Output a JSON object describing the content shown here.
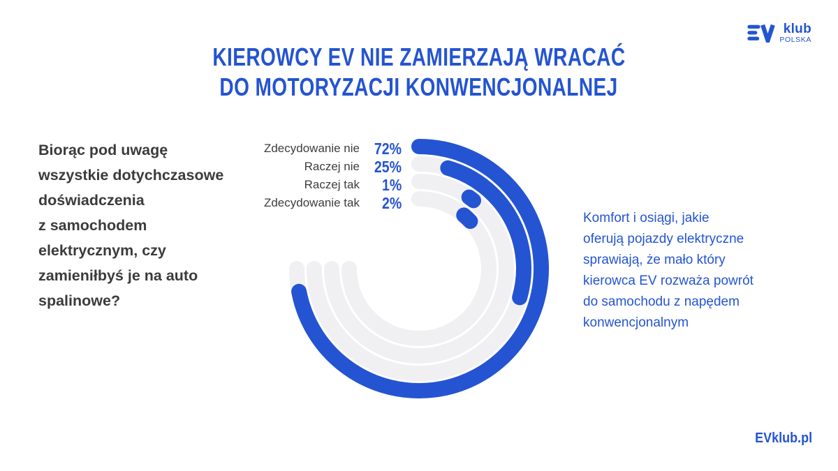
{
  "accent": "#2454d2",
  "header": {
    "title_line1": "KIEROWCY EV NIE ZAMIERZAJĄ WRACAĆ",
    "title_line2": "DO MOTORYZACJI KONWENCJONALNEJ"
  },
  "logo": {
    "klub": "klub",
    "polska": "POLSKA"
  },
  "question": {
    "text": "Biorąc pod uwagę\nwszystkie dotychczasowe\ndoświadczenia\nz samochodem\nelektrycznym, czy\nzamieniłbyś je na auto\nspalinowe?"
  },
  "legend": {
    "rows": [
      {
        "label": "Zdecydowanie nie",
        "pct": "72%"
      },
      {
        "label": "Raczej nie",
        "pct": "25%"
      },
      {
        "label": "Raczej tak",
        "pct": "1%"
      },
      {
        "label": "Zdecydowanie tak",
        "pct": "2%"
      }
    ]
  },
  "commentary": {
    "text": "Komfort i osiągi, jakie\noferują pojazdy elektryczne\nsprawiają, że mało który\nkierowca EV rozważa powrót\ndo samochodu z napędem\nkonwencjonalnym"
  },
  "footer": {
    "url": "EVklub.pl"
  },
  "chart_data": {
    "type": "bar",
    "subtype": "radial-concentric-arcs",
    "title": "KIEROWCY EV NIE ZAMIERZAJĄ WRACAĆ DO MOTORYZACJI KONWENCJONALNEJ",
    "question": "Biorąc pod uwagę wszystkie dotychczasowe doświadczenia z samochodem elektrycznym, czy zamieniłbyś je na auto spalinowe?",
    "categories": [
      "Zdecydowanie nie",
      "Raczej nie",
      "Raczej tak",
      "Zdecydowanie tak"
    ],
    "values": [
      72,
      25,
      1,
      2
    ],
    "unit": "%",
    "scale_full_circle_pct": 100,
    "start_angles_deg": [
      0,
      16,
      35,
      40
    ],
    "track_start_deg": 0,
    "track_end_deg": 270,
    "radii": [
      175,
      150,
      125,
      100
    ],
    "stroke_width": 22,
    "colors": {
      "arc": "#2454d2",
      "track": "#f0f0f2"
    },
    "legend_position": "top-left",
    "grid": false
  }
}
